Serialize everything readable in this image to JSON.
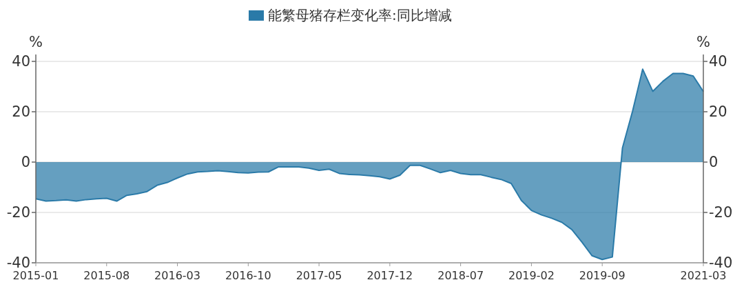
{
  "chart_data": {
    "type": "area",
    "legend": "top",
    "grid": "y",
    "ylabel": "%",
    "y2label": "%",
    "ylim": [
      -40,
      40
    ],
    "yticks": [
      -40,
      -20,
      0,
      20,
      40
    ],
    "y2lim": [
      -40,
      40
    ],
    "y2ticks": [
      -40,
      -20,
      0,
      20,
      40
    ],
    "categories": [
      "2015-01",
      null,
      null,
      null,
      null,
      null,
      null,
      "2015-08",
      null,
      null,
      null,
      null,
      null,
      null,
      "2016-03",
      null,
      null,
      null,
      null,
      null,
      null,
      "2016-10",
      null,
      null,
      null,
      null,
      null,
      null,
      "2017-05",
      null,
      null,
      null,
      null,
      null,
      null,
      "2017-12",
      null,
      null,
      null,
      null,
      null,
      null,
      "2018-07",
      null,
      null,
      null,
      null,
      null,
      null,
      "2019-02",
      null,
      null,
      null,
      null,
      null,
      null,
      "2019-09",
      null,
      null,
      null,
      null,
      null,
      null,
      null,
      null,
      null,
      "2021-03"
    ],
    "series": [
      {
        "name": "能繁母猪存栏变化率:同比增减",
        "color": "#2a7aa8",
        "values": [
          -14.6,
          -15.5,
          -15.3,
          -15.0,
          -15.5,
          -14.9,
          -14.6,
          -14.4,
          -15.5,
          -13.2,
          -12.6,
          -11.7,
          -9.2,
          -8.1,
          -6.3,
          -4.7,
          -3.9,
          -3.7,
          -3.4,
          -3.8,
          -4.2,
          -4.3,
          -4.0,
          -3.9,
          -1.9,
          -1.9,
          -1.9,
          -2.4,
          -3.3,
          -2.8,
          -4.5,
          -4.9,
          -5.1,
          -5.4,
          -5.8,
          -6.7,
          -5.2,
          -1.3,
          -1.3,
          -2.7,
          -4.2,
          -3.3,
          -4.5,
          -5.0,
          -5.0,
          -6.0,
          -6.9,
          -8.5,
          -15.2,
          -19.2,
          -21.0,
          -22.3,
          -23.9,
          -26.8,
          -31.8,
          -37.2,
          -38.7,
          -37.7,
          5.6,
          20.2,
          36.9,
          28.1,
          32.1,
          35.2,
          35.2,
          34.2,
          28.0
        ]
      }
    ]
  }
}
